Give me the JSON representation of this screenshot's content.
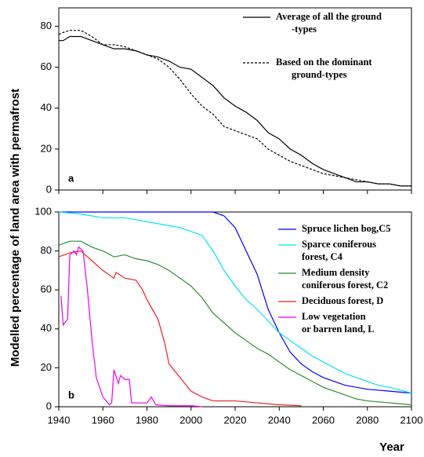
{
  "ylabel": "Modelled percentage of land area with permafrost",
  "xlabel": "Year",
  "chart_data": [
    {
      "type": "line",
      "panel": "a",
      "xlim": [
        1940,
        2100
      ],
      "xticks": [
        1940,
        1960,
        1980,
        2000,
        2020,
        2040,
        2060,
        2080,
        2100
      ],
      "xtick_labels": false,
      "ylim": [
        0,
        89
      ],
      "yticks": [
        0,
        20,
        40,
        60,
        80
      ],
      "series": [
        {
          "name": "Average of all the ground\n-types",
          "color": "#000000",
          "dash": false,
          "x": [
            1940,
            1942,
            1945,
            1950,
            1955,
            1960,
            1965,
            1970,
            1975,
            1980,
            1985,
            1990,
            1995,
            2000,
            2005,
            2010,
            2015,
            2020,
            2025,
            2030,
            2035,
            2040,
            2045,
            2050,
            2055,
            2060,
            2065,
            2070,
            2075,
            2080,
            2085,
            2090,
            2095,
            2100
          ],
          "values": [
            73,
            73,
            75,
            75,
            73,
            71,
            69,
            69,
            68,
            66,
            65,
            63,
            60,
            59,
            55,
            51,
            45,
            41,
            38,
            34,
            28,
            25,
            20,
            17,
            13,
            10,
            8,
            6,
            4,
            4,
            3,
            3,
            2,
            2
          ]
        },
        {
          "name": "Based on the dominant\nground-types",
          "color": "#000000",
          "dash": true,
          "x": [
            1940,
            1942,
            1945,
            1950,
            1955,
            1960,
            1965,
            1970,
            1975,
            1980,
            1985,
            1990,
            1995,
            2000,
            2005,
            2010,
            2015,
            2020,
            2025,
            2030,
            2035,
            2040,
            2045,
            2050,
            2055,
            2060,
            2065,
            2070,
            2075,
            2080,
            2085,
            2090,
            2095,
            2100
          ],
          "values": [
            76,
            77,
            78,
            78,
            75,
            71,
            71,
            70,
            68,
            66,
            64,
            60,
            54,
            47,
            41,
            37,
            31,
            29,
            27,
            25,
            20,
            17,
            14,
            12,
            10,
            8,
            7,
            6,
            5,
            4,
            3,
            3,
            2,
            2
          ]
        }
      ]
    },
    {
      "type": "line",
      "panel": "b",
      "xlim": [
        1940,
        2100
      ],
      "xticks": [
        1940,
        1960,
        1980,
        2000,
        2020,
        2040,
        2060,
        2080,
        2100
      ],
      "xtick_labels": true,
      "ylim": [
        0,
        100
      ],
      "yticks": [
        0,
        20,
        40,
        60,
        80,
        100
      ],
      "series": [
        {
          "name": "Spruce lichen bog,C5",
          "color": "#0000ff",
          "dash": false,
          "x": [
            1940,
            1960,
            1980,
            2000,
            2005,
            2010,
            2015,
            2020,
            2025,
            2030,
            2035,
            2040,
            2045,
            2050,
            2055,
            2060,
            2065,
            2070,
            2075,
            2080,
            2085,
            2090,
            2095,
            2100
          ],
          "values": [
            100,
            100,
            100,
            100,
            100,
            100,
            98,
            92,
            80,
            68,
            50,
            38,
            28,
            22,
            18,
            15,
            13,
            11,
            10,
            9,
            8.5,
            8,
            7.5,
            7
          ]
        },
        {
          "name": "Sparce coniferous\nforest, C4",
          "color": "#00e5ee",
          "dash": false,
          "x": [
            1940,
            1950,
            1960,
            1970,
            1980,
            1990,
            1995,
            2000,
            2005,
            2010,
            2015,
            2020,
            2025,
            2030,
            2035,
            2040,
            2045,
            2050,
            2055,
            2060,
            2065,
            2070,
            2075,
            2080,
            2085,
            2090,
            2095,
            2100
          ],
          "values": [
            100,
            99,
            97,
            97,
            95,
            93,
            92,
            90,
            88,
            80,
            70,
            62,
            55,
            50,
            44,
            38,
            34,
            30,
            26,
            23,
            20,
            17,
            15,
            13,
            11,
            10,
            8.5,
            7
          ]
        },
        {
          "name": "Medium density\nconiferous forest, C2",
          "color": "#2e8b2e",
          "dash": false,
          "x": [
            1940,
            1945,
            1950,
            1955,
            1960,
            1965,
            1970,
            1975,
            1980,
            1985,
            1990,
            1995,
            2000,
            2005,
            2010,
            2015,
            2020,
            2025,
            2030,
            2035,
            2040,
            2045,
            2050,
            2055,
            2060,
            2065,
            2070,
            2075,
            2080,
            2085,
            2090,
            2095,
            2100
          ],
          "values": [
            83,
            85,
            85,
            82,
            80,
            77,
            78,
            76,
            75,
            73,
            70,
            66,
            62,
            56,
            48,
            43,
            38,
            34,
            30,
            27,
            23,
            19,
            16,
            13,
            10,
            8,
            6,
            4,
            3,
            2.5,
            2,
            1.5,
            1
          ]
        },
        {
          "name": "Deciduous forest, D",
          "color": "#ee2222",
          "dash": false,
          "x": [
            1940,
            1945,
            1950,
            1955,
            1960,
            1965,
            1966,
            1970,
            1975,
            1978,
            1980,
            1985,
            1988,
            1990,
            1995,
            2000,
            2005,
            2010,
            2020,
            2030,
            2040,
            2050
          ],
          "values": [
            77,
            79,
            80,
            75,
            70,
            66,
            69,
            66,
            65,
            60,
            55,
            45,
            33,
            22,
            15,
            8,
            5,
            3,
            3,
            2,
            1,
            0.5
          ]
        },
        {
          "name": "Low vegetation\nor barren land, L",
          "color": "#ee00ee",
          "dash": false,
          "x": [
            1941,
            1942,
            1944,
            1945,
            1947,
            1948,
            1949,
            1951,
            1953,
            1955,
            1957,
            1960,
            1963,
            1964,
            1965,
            1967,
            1968,
            1970,
            1972,
            1973,
            1975,
            1980,
            1982,
            1984,
            1990,
            2000,
            2005
          ],
          "values": [
            57,
            42,
            45,
            78,
            80,
            78,
            82,
            80,
            60,
            35,
            15,
            5,
            1,
            2,
            19,
            12,
            16,
            14,
            14,
            2,
            2,
            2,
            5,
            1,
            0.5,
            0.5,
            0
          ]
        }
      ]
    }
  ]
}
